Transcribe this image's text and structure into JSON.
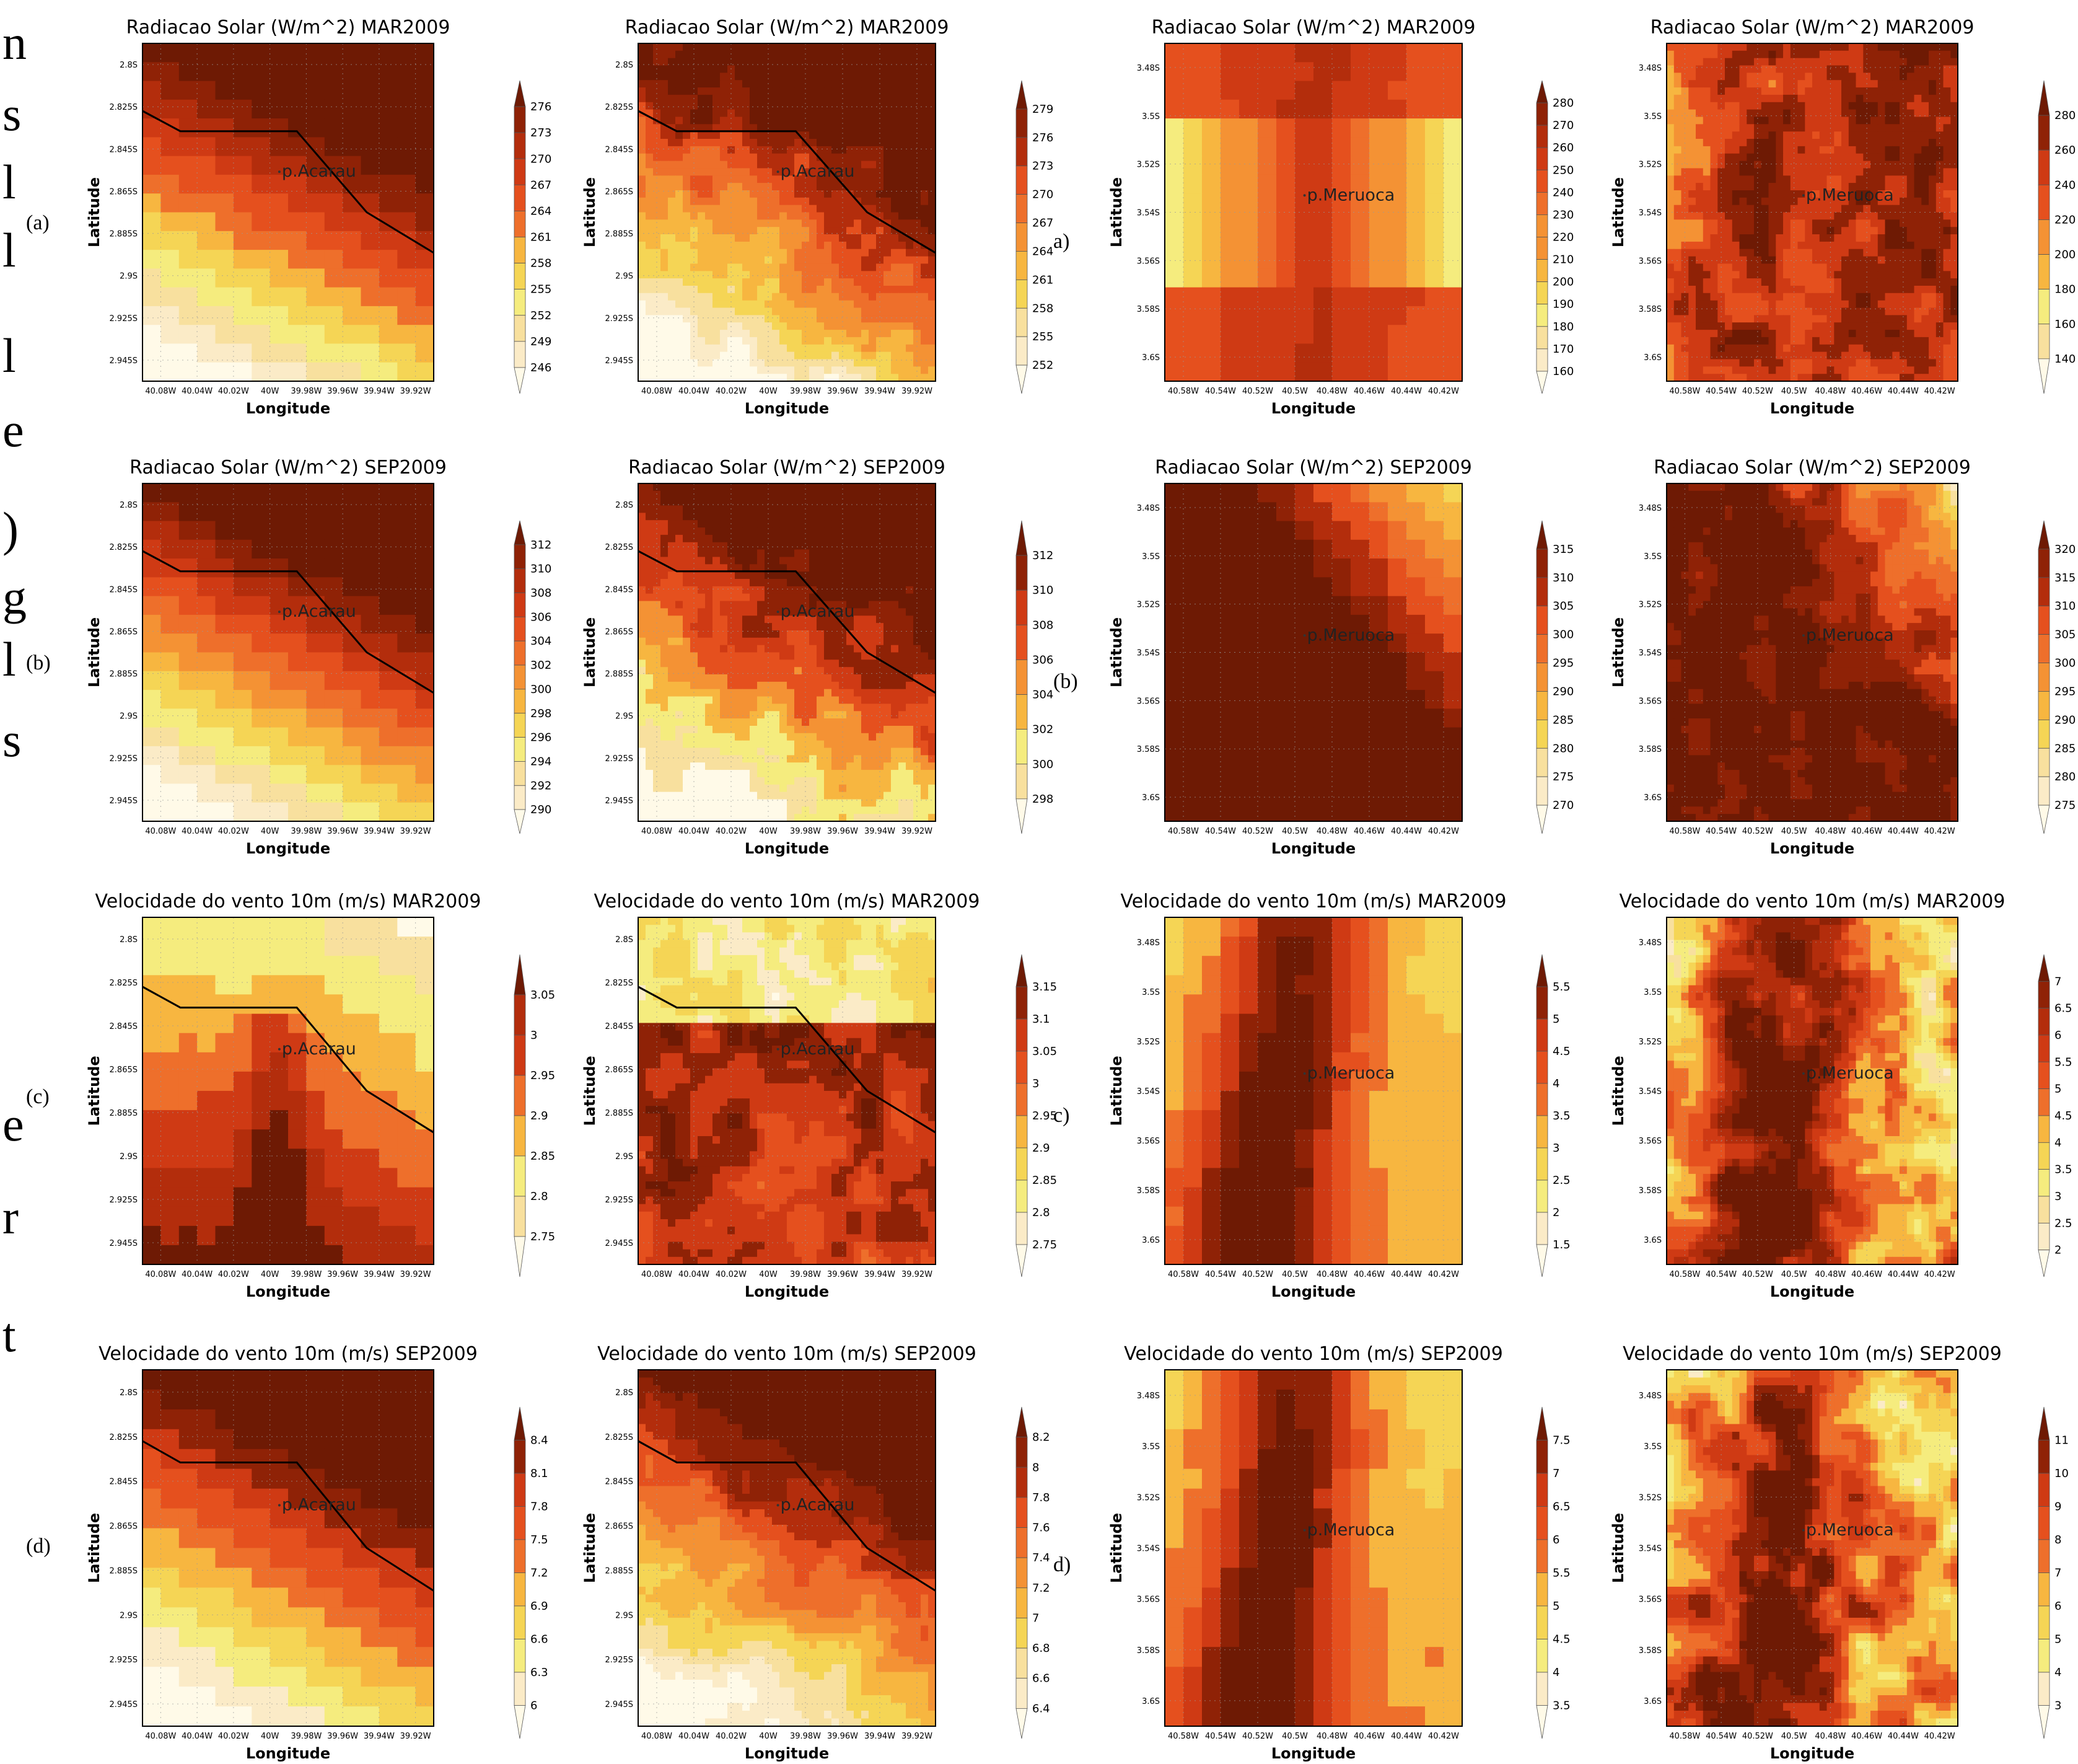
{
  "figure": {
    "side_glyphs": [
      "n",
      "s",
      "l",
      "l",
      "l",
      "e",
      ")",
      "g",
      "l",
      "s",
      "e",
      "r",
      "t"
    ],
    "row_labels_left": [
      "(a)",
      "(b)",
      "(c)",
      "(d)"
    ],
    "row_labels_mid": [
      "a)",
      "(b)",
      "c)",
      "d)"
    ]
  },
  "colors": {
    "scale": [
      "#fffae8",
      "#fbebc7",
      "#f8e09e",
      "#f5ec7e",
      "#f5d555",
      "#f7b640",
      "#f49234",
      "#ee6f2b",
      "#e5501e",
      "#cf3a14",
      "#b32d0c",
      "#8f2206",
      "#6e1a04"
    ],
    "coast_line": "#000000",
    "text": "#000000",
    "grid": "#9a9a9a"
  },
  "chart_data": [
    {
      "id": "a-acarau-coarse",
      "type": "heatmap",
      "title": "Radiacao Solar (W/m^2) MAR2009",
      "xlabel": "Longitude",
      "ylabel": "Latitude",
      "x_ticks": [
        "40.08W",
        "40.04W",
        "40.02W",
        "40W",
        "39.98W",
        "39.96W",
        "39.94W",
        "39.92W"
      ],
      "y_ticks": [
        "2.8S",
        "2.825S",
        "2.845S",
        "2.865S",
        "2.885S",
        "2.9S",
        "2.925S",
        "2.945S"
      ],
      "colorbar": [
        "246",
        "249",
        "252",
        "255",
        "258",
        "261",
        "264",
        "267",
        "270",
        "273",
        "276"
      ],
      "point_label": "p.Acarau",
      "coastline": true,
      "field": {
        "kind": "diag",
        "noise": 0.01
      }
    },
    {
      "id": "a-acarau-fine",
      "type": "heatmap",
      "title": "Radiacao Solar (W/m^2) MAR2009",
      "xlabel": "Longitude",
      "ylabel": "Latitude",
      "x_ticks": [
        "40.08W",
        "40.04W",
        "40.02W",
        "40W",
        "39.98W",
        "39.96W",
        "39.94W",
        "39.92W"
      ],
      "y_ticks": [
        "2.8S",
        "2.825S",
        "2.845S",
        "2.865S",
        "2.885S",
        "2.9S",
        "2.925S",
        "2.945S"
      ],
      "colorbar": [
        "252",
        "255",
        "258",
        "261",
        "264",
        "267",
        "270",
        "273",
        "276",
        "279"
      ],
      "point_label": "p.Acarau",
      "coastline": true,
      "field": {
        "kind": "diag",
        "noise": 0.12
      }
    },
    {
      "id": "a-meruoca-coarse",
      "type": "heatmap",
      "title": "Radiacao Solar (W/m^2) MAR2009",
      "xlabel": "Longitude",
      "ylabel": "Latitude",
      "x_ticks": [
        "40.58W",
        "40.54W",
        "40.52W",
        "40.5W",
        "40.48W",
        "40.46W",
        "40.44W",
        "40.42W"
      ],
      "y_ticks": [
        "3.48S",
        "3.5S",
        "3.52S",
        "3.54S",
        "3.56S",
        "3.58S",
        "3.6S"
      ],
      "colorbar": [
        "160",
        "170",
        "180",
        "190",
        "200",
        "210",
        "220",
        "230",
        "240",
        "250",
        "260",
        "270",
        "280"
      ],
      "point_label": "p.Meruoca",
      "coastline": false,
      "field": {
        "kind": "cross",
        "noise": 0.02
      }
    },
    {
      "id": "a-meruoca-fine",
      "type": "heatmap",
      "title": "Radiacao Solar (W/m^2) MAR2009",
      "xlabel": "Longitude",
      "ylabel": "Latitude",
      "x_ticks": [
        "40.58W",
        "40.54W",
        "40.52W",
        "40.5W",
        "40.48W",
        "40.46W",
        "40.44W",
        "40.42W"
      ],
      "y_ticks": [
        "3.48S",
        "3.5S",
        "3.52S",
        "3.54S",
        "3.56S",
        "3.58S",
        "3.6S"
      ],
      "colorbar": [
        "140",
        "160",
        "180",
        "200",
        "220",
        "240",
        "260",
        "280"
      ],
      "point_label": "p.Meruoca",
      "coastline": false,
      "field": {
        "kind": "noisyhigh",
        "noise": 0.18
      }
    },
    {
      "id": "b-acarau-coarse",
      "type": "heatmap",
      "title": "Radiacao Solar (W/m^2) SEP2009",
      "xlabel": "Longitude",
      "ylabel": "Latitude",
      "x_ticks": [
        "40.08W",
        "40.04W",
        "40.02W",
        "40W",
        "39.98W",
        "39.96W",
        "39.94W",
        "39.92W"
      ],
      "y_ticks": [
        "2.8S",
        "2.825S",
        "2.845S",
        "2.865S",
        "2.885S",
        "2.9S",
        "2.925S",
        "2.945S"
      ],
      "colorbar": [
        "290",
        "292",
        "294",
        "296",
        "298",
        "300",
        "302",
        "304",
        "306",
        "308",
        "310",
        "312"
      ],
      "point_label": "p.Acarau",
      "coastline": true,
      "field": {
        "kind": "diag",
        "noise": 0.01
      }
    },
    {
      "id": "b-acarau-fine",
      "type": "heatmap",
      "title": "Radiacao Solar (W/m^2) SEP2009",
      "xlabel": "Longitude",
      "ylabel": "Latitude",
      "x_ticks": [
        "40.08W",
        "40.04W",
        "40.02W",
        "40W",
        "39.98W",
        "39.96W",
        "39.94W",
        "39.92W"
      ],
      "y_ticks": [
        "2.8S",
        "2.825S",
        "2.845S",
        "2.865S",
        "2.885S",
        "2.9S",
        "2.925S",
        "2.945S"
      ],
      "colorbar": [
        "298",
        "300",
        "302",
        "304",
        "306",
        "308",
        "310",
        "312"
      ],
      "point_label": "p.Acarau",
      "coastline": true,
      "field": {
        "kind": "diag",
        "noise": 0.14
      }
    },
    {
      "id": "b-meruoca-coarse",
      "type": "heatmap",
      "title": "Radiacao Solar (W/m^2) SEP2009",
      "xlabel": "Longitude",
      "ylabel": "Latitude",
      "x_ticks": [
        "40.58W",
        "40.54W",
        "40.52W",
        "40.5W",
        "40.48W",
        "40.46W",
        "40.44W",
        "40.42W"
      ],
      "y_ticks": [
        "3.48S",
        "3.5S",
        "3.52S",
        "3.54S",
        "3.56S",
        "3.58S",
        "3.6S"
      ],
      "colorbar": [
        "270",
        "275",
        "280",
        "285",
        "290",
        "295",
        "300",
        "305",
        "310",
        "315"
      ],
      "point_label": "p.Meruoca",
      "coastline": false,
      "field": {
        "kind": "corner",
        "noise": 0.02
      }
    },
    {
      "id": "b-meruoca-fine",
      "type": "heatmap",
      "title": "Radiacao Solar (W/m^2) SEP2009",
      "xlabel": "Longitude",
      "ylabel": "Latitude",
      "x_ticks": [
        "40.58W",
        "40.54W",
        "40.52W",
        "40.5W",
        "40.48W",
        "40.46W",
        "40.44W",
        "40.42W"
      ],
      "y_ticks": [
        "3.48S",
        "3.5S",
        "3.52S",
        "3.54S",
        "3.56S",
        "3.58S",
        "3.6S"
      ],
      "colorbar": [
        "275",
        "280",
        "285",
        "290",
        "295",
        "300",
        "305",
        "310",
        "315",
        "320"
      ],
      "point_label": "p.Meruoca",
      "coastline": false,
      "field": {
        "kind": "corner",
        "noise": 0.12
      }
    },
    {
      "id": "c-acarau-coarse",
      "type": "heatmap",
      "title": "Velocidade do vento 10m (m/s) MAR2009",
      "xlabel": "Longitude",
      "ylabel": "Latitude",
      "x_ticks": [
        "40.08W",
        "40.04W",
        "40.02W",
        "40W",
        "39.98W",
        "39.96W",
        "39.94W",
        "39.92W"
      ],
      "y_ticks": [
        "2.8S",
        "2.825S",
        "2.845S",
        "2.865S",
        "2.885S",
        "2.9S",
        "2.925S",
        "2.945S"
      ],
      "colorbar": [
        "2.75",
        "2.8",
        "2.85",
        "2.9",
        "2.95",
        "3",
        "3.05"
      ],
      "point_label": "p.Acarau",
      "coastline": true,
      "field": {
        "kind": "windmar",
        "noise": 0.02
      }
    },
    {
      "id": "c-acarau-fine",
      "type": "heatmap",
      "title": "Velocidade do vento 10m (m/s) MAR2009",
      "xlabel": "Longitude",
      "ylabel": "Latitude",
      "x_ticks": [
        "40.08W",
        "40.04W",
        "40.02W",
        "40W",
        "39.98W",
        "39.96W",
        "39.94W",
        "39.92W"
      ],
      "y_ticks": [
        "2.8S",
        "2.825S",
        "2.845S",
        "2.865S",
        "2.885S",
        "2.9S",
        "2.925S",
        "2.945S"
      ],
      "colorbar": [
        "2.75",
        "2.8",
        "2.85",
        "2.9",
        "2.95",
        "3",
        "3.05",
        "3.1",
        "3.15"
      ],
      "point_label": "p.Acarau",
      "coastline": true,
      "field": {
        "kind": "windmarfine",
        "noise": 0.14
      }
    },
    {
      "id": "c-meruoca-coarse",
      "type": "heatmap",
      "title": "Velocidade do vento 10m (m/s) MAR2009",
      "xlabel": "Longitude",
      "ylabel": "Latitude",
      "x_ticks": [
        "40.58W",
        "40.54W",
        "40.52W",
        "40.5W",
        "40.48W",
        "40.46W",
        "40.44W",
        "40.42W"
      ],
      "y_ticks": [
        "3.48S",
        "3.5S",
        "3.52S",
        "3.54S",
        "3.56S",
        "3.58S",
        "3.6S"
      ],
      "colorbar": [
        "1.5",
        "2",
        "2.5",
        "3",
        "3.5",
        "4",
        "4.5",
        "5",
        "5.5"
      ],
      "point_label": "p.Meruoca",
      "coastline": false,
      "field": {
        "kind": "ridge",
        "noise": 0.03
      }
    },
    {
      "id": "c-meruoca-fine",
      "type": "heatmap",
      "title": "Velocidade do vento 10m (m/s) MAR2009",
      "xlabel": "Longitude",
      "ylabel": "Latitude",
      "x_ticks": [
        "40.58W",
        "40.54W",
        "40.52W",
        "40.5W",
        "40.48W",
        "40.46W",
        "40.44W",
        "40.42W"
      ],
      "y_ticks": [
        "3.48S",
        "3.5S",
        "3.52S",
        "3.54S",
        "3.56S",
        "3.58S",
        "3.6S"
      ],
      "colorbar": [
        "2",
        "2.5",
        "3",
        "3.5",
        "4",
        "4.5",
        "5",
        "5.5",
        "6",
        "6.5",
        "7"
      ],
      "point_label": "p.Meruoca",
      "coastline": false,
      "field": {
        "kind": "ridge",
        "noise": 0.22
      }
    },
    {
      "id": "d-acarau-coarse",
      "type": "heatmap",
      "title": "Velocidade do vento 10m (m/s) SEP2009",
      "xlabel": "Longitude",
      "ylabel": "Latitude",
      "x_ticks": [
        "40.08W",
        "40.04W",
        "40.02W",
        "40W",
        "39.98W",
        "39.96W",
        "39.94W",
        "39.92W"
      ],
      "y_ticks": [
        "2.8S",
        "2.825S",
        "2.845S",
        "2.865S",
        "2.885S",
        "2.9S",
        "2.925S",
        "2.945S"
      ],
      "colorbar": [
        "6",
        "6.3",
        "6.6",
        "6.9",
        "7.2",
        "7.5",
        "7.8",
        "8.1",
        "8.4"
      ],
      "point_label": "p.Acarau",
      "coastline": true,
      "field": {
        "kind": "diag",
        "noise": 0.01
      }
    },
    {
      "id": "d-acarau-fine",
      "type": "heatmap",
      "title": "Velocidade do vento 10m (m/s) SEP2009",
      "xlabel": "Longitude",
      "ylabel": "Latitude",
      "x_ticks": [
        "40.08W",
        "40.04W",
        "40.02W",
        "40W",
        "39.98W",
        "39.96W",
        "39.94W",
        "39.92W"
      ],
      "y_ticks": [
        "2.8S",
        "2.825S",
        "2.845S",
        "2.865S",
        "2.885S",
        "2.9S",
        "2.925S",
        "2.945S"
      ],
      "colorbar": [
        "6.4",
        "6.6",
        "6.8",
        "7",
        "7.2",
        "7.4",
        "7.6",
        "7.8",
        "8",
        "8.2"
      ],
      "point_label": "p.Acarau",
      "coastline": true,
      "field": {
        "kind": "diag",
        "noise": 0.1
      }
    },
    {
      "id": "d-meruoca-coarse",
      "type": "heatmap",
      "title": "Velocidade do vento 10m (m/s) SEP2009",
      "xlabel": "Longitude",
      "ylabel": "Latitude",
      "x_ticks": [
        "40.58W",
        "40.54W",
        "40.52W",
        "40.5W",
        "40.48W",
        "40.46W",
        "40.44W",
        "40.42W"
      ],
      "y_ticks": [
        "3.48S",
        "3.5S",
        "3.52S",
        "3.54S",
        "3.56S",
        "3.58S",
        "3.6S"
      ],
      "colorbar": [
        "3.5",
        "4",
        "4.5",
        "5",
        "5.5",
        "6",
        "6.5",
        "7",
        "7.5"
      ],
      "point_label": "p.Meruoca",
      "coastline": false,
      "field": {
        "kind": "ridge",
        "noise": 0.03
      }
    },
    {
      "id": "d-meruoca-fine",
      "type": "heatmap",
      "title": "Velocidade do vento 10m (m/s) SEP2009",
      "xlabel": "Longitude",
      "ylabel": "Latitude",
      "x_ticks": [
        "40.58W",
        "40.54W",
        "40.52W",
        "40.5W",
        "40.48W",
        "40.46W",
        "40.44W",
        "40.42W"
      ],
      "y_ticks": [
        "3.48S",
        "3.5S",
        "3.52S",
        "3.54S",
        "3.56S",
        "3.58S",
        "3.6S"
      ],
      "colorbar": [
        "3",
        "4",
        "5",
        "6",
        "7",
        "8",
        "9",
        "10",
        "11"
      ],
      "point_label": "p.Meruoca",
      "coastline": false,
      "field": {
        "kind": "ridge",
        "noise": 0.24
      }
    }
  ]
}
